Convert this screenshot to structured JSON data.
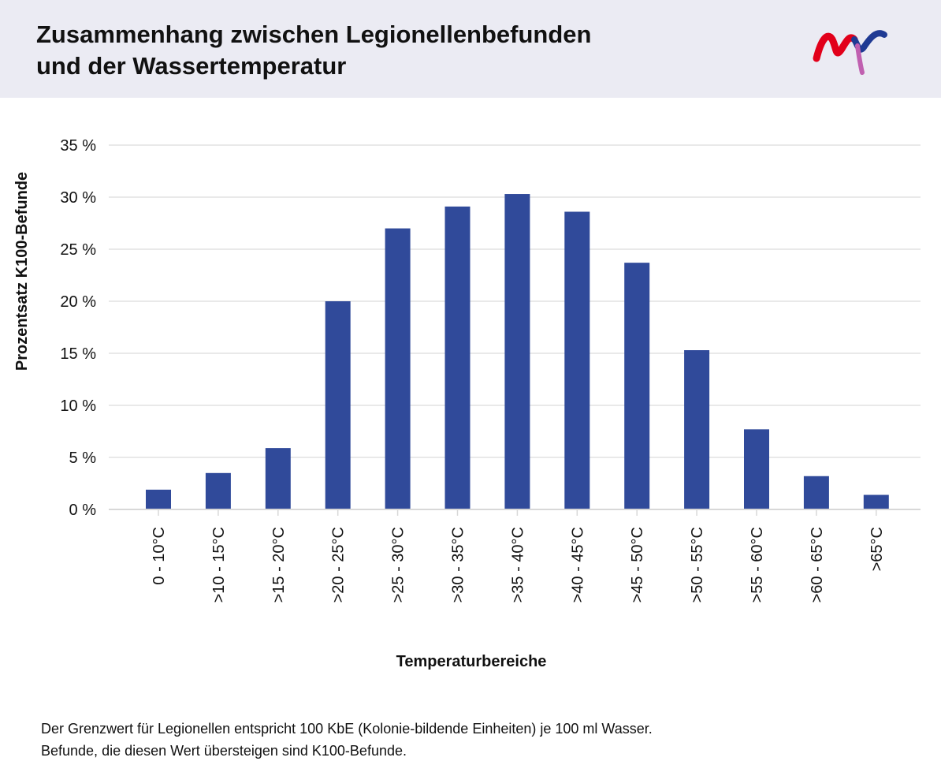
{
  "header": {
    "title_line1": "Zusammenhang zwischen Legionellenbefunden",
    "title_line2": "und der Wassertemperatur",
    "logo_icon": "mvv-logo-icon",
    "logo_colors": [
      "#e2001a",
      "#1f3a93",
      "#c060b0"
    ]
  },
  "chart_data": {
    "type": "bar",
    "title": "Zusammenhang zwischen Legionellenbefunden und der Wassertemperatur",
    "xlabel": "Temperaturbereiche",
    "ylabel": "Prozentsatz K100-Befunde",
    "categories": [
      "0 - 10°C",
      ">10 - 15°C",
      ">15 - 20°C",
      ">20 - 25°C",
      ">25 - 30°C",
      ">30 - 35°C",
      ">35 - 40°C",
      ">40 - 45°C",
      ">45 - 50°C",
      ">50 - 55°C",
      ">55 - 60°C",
      ">60 - 65°C",
      ">65°C"
    ],
    "values": [
      1.9,
      3.5,
      5.9,
      20.0,
      27.0,
      29.1,
      30.3,
      28.6,
      23.7,
      15.3,
      7.7,
      3.2,
      1.4
    ],
    "ylim": [
      0,
      35
    ],
    "yticks": [
      0,
      5,
      10,
      15,
      20,
      25,
      30,
      35
    ],
    "ytick_labels": [
      "0 %",
      "5 %",
      "10 %",
      "15 %",
      "20 %",
      "25 %",
      "30 %",
      "35 %"
    ],
    "grid": true,
    "bar_color": "#304a9a",
    "grid_color": "#e2e2e2"
  },
  "footnote": {
    "line1": "Der Grenzwert für Legionellen entspricht 100 KbE (Kolonie-bildende Einheiten) je 100 ml Wasser.",
    "line2": "Befunde, die diesen Wert übersteigen sind K100-Befunde."
  }
}
